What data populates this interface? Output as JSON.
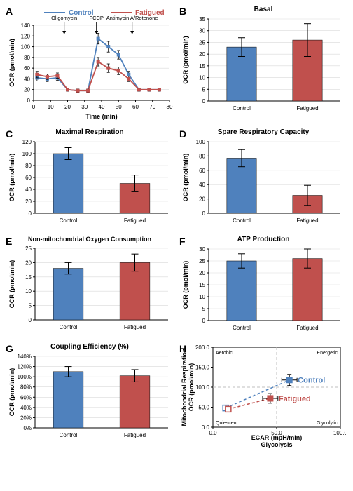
{
  "colors": {
    "control": "#4f81bd",
    "fatigued": "#c0504d",
    "axis": "#000000",
    "grid": "#d9d9d9",
    "bg": "#ffffff",
    "text": "#000000"
  },
  "legend": {
    "control": "Control",
    "fatigued": "Fatigued"
  },
  "panelA": {
    "label": "A",
    "type": "line",
    "xlabel": "Time (min)",
    "ylabel": "OCR (pmol/min)",
    "xlim": [
      0,
      80
    ],
    "xticks": [
      0,
      10,
      20,
      30,
      40,
      50,
      60,
      70,
      80
    ],
    "ylim": [
      0,
      140
    ],
    "yticks": [
      0,
      20,
      40,
      60,
      80,
      100,
      120,
      140
    ],
    "annotations": [
      {
        "text": "Oligomycin",
        "x": 18
      },
      {
        "text": "FCCP",
        "x": 37
      },
      {
        "text": "Antimycin A/Rotenone",
        "x": 58
      }
    ],
    "series": {
      "control": {
        "x": [
          2,
          8,
          14,
          20,
          26,
          32,
          38,
          44,
          50,
          56,
          62,
          68,
          74
        ],
        "y": [
          42,
          40,
          42,
          20,
          18,
          18,
          115,
          100,
          85,
          48,
          20,
          20,
          20
        ],
        "err": [
          6,
          5,
          5,
          3,
          3,
          3,
          10,
          10,
          8,
          6,
          3,
          3,
          3
        ]
      },
      "fatigued": {
        "x": [
          2,
          8,
          14,
          20,
          26,
          32,
          38,
          44,
          50,
          56,
          62,
          68,
          74
        ],
        "y": [
          48,
          44,
          46,
          20,
          18,
          18,
          72,
          60,
          55,
          40,
          20,
          20,
          20
        ],
        "err": [
          6,
          5,
          5,
          3,
          3,
          3,
          8,
          8,
          7,
          5,
          3,
          3,
          3
        ]
      }
    }
  },
  "panelB": {
    "label": "B",
    "title": "Basal",
    "type": "bar",
    "ylabel": "OCR (pmol/min)",
    "ylim": [
      0,
      35
    ],
    "yticks": [
      0,
      5,
      10,
      15,
      20,
      25,
      30,
      35
    ],
    "categories": [
      "Control",
      "Fatigued"
    ],
    "values": [
      23,
      26
    ],
    "errors": [
      4,
      7
    ],
    "bar_colors": [
      "#4f81bd",
      "#c0504d"
    ],
    "bar_width": 0.45
  },
  "panelC": {
    "label": "C",
    "title": "Maximal Respiration",
    "type": "bar",
    "ylabel": "OCR (pmol/min)",
    "ylim": [
      0,
      120
    ],
    "yticks": [
      0,
      20,
      40,
      60,
      80,
      100,
      120
    ],
    "categories": [
      "Control",
      "Fatigued"
    ],
    "values": [
      100,
      50
    ],
    "errors": [
      10,
      14
    ],
    "bar_colors": [
      "#4f81bd",
      "#c0504d"
    ],
    "bar_width": 0.45
  },
  "panelD": {
    "label": "D",
    "title": "Spare Respiratory Capacity",
    "type": "bar",
    "ylabel": "OCR (pmol/min)",
    "ylim": [
      0,
      100
    ],
    "yticks": [
      0,
      20,
      40,
      60,
      80,
      100
    ],
    "categories": [
      "Control",
      "Fatigued"
    ],
    "values": [
      77,
      25
    ],
    "errors": [
      12,
      14
    ],
    "bar_colors": [
      "#4f81bd",
      "#c0504d"
    ],
    "bar_width": 0.45
  },
  "panelE": {
    "label": "E",
    "title": "Non-mitochondrial Oxygen Consumption",
    "type": "bar",
    "ylabel": "OCR (pmol/min)",
    "ylim": [
      0,
      25
    ],
    "yticks": [
      0,
      5,
      10,
      15,
      20,
      25
    ],
    "categories": [
      "Control",
      "Fatigued"
    ],
    "values": [
      18,
      20
    ],
    "errors": [
      2,
      3
    ],
    "bar_colors": [
      "#4f81bd",
      "#c0504d"
    ],
    "bar_width": 0.45
  },
  "panelF": {
    "label": "F",
    "title": "ATP Production",
    "type": "bar",
    "ylabel": "OCR (pmol/min)",
    "ylim": [
      0,
      30
    ],
    "yticks": [
      0,
      5,
      10,
      15,
      20,
      25,
      30
    ],
    "categories": [
      "Control",
      "Fatigued"
    ],
    "values": [
      25,
      26
    ],
    "errors": [
      3,
      4
    ],
    "bar_colors": [
      "#4f81bd",
      "#c0504d"
    ],
    "bar_width": 0.45
  },
  "panelG": {
    "label": "G",
    "title": "Coupling Efficiency (%)",
    "type": "bar",
    "ylabel": "OCR (pmol/min)",
    "ylim": [
      0,
      140
    ],
    "yticks_labels": [
      "0%",
      "20%",
      "40%",
      "60%",
      "80%",
      "100%",
      "120%",
      "140%"
    ],
    "yticks": [
      0,
      20,
      40,
      60,
      80,
      100,
      120,
      140
    ],
    "categories": [
      "Control",
      "Fatigued"
    ],
    "values": [
      110,
      102
    ],
    "errors": [
      10,
      12
    ],
    "bar_colors": [
      "#4f81bd",
      "#c0504d"
    ],
    "bar_width": 0.45
  },
  "panelH": {
    "label": "H",
    "type": "scatter-line",
    "xlabel_line1": "ECAR (mpH/min)",
    "xlabel_line2": "Glycolysis",
    "ylabel_line1": "Mitochondrial Respiration",
    "ylabel_line2": "OCR (pmol/min)",
    "xlim": [
      0,
      100
    ],
    "xticks": [
      0,
      50,
      100
    ],
    "xticklabels": [
      "0.0",
      "50.0",
      "100.0"
    ],
    "ylim": [
      0,
      200
    ],
    "yticks": [
      0,
      50,
      100,
      150,
      200
    ],
    "yticklabels": [
      "0.0",
      "50.0",
      "100.0",
      "150.0",
      "200.0"
    ],
    "mid_x": 50,
    "mid_y": 100,
    "quadrants": {
      "tl": "Aerobic",
      "tr": "Energetic",
      "bl": "Quiescent",
      "br": "Glycolytic"
    },
    "series": {
      "control": {
        "open": {
          "x": 10,
          "y": 48
        },
        "filled": {
          "x": 60,
          "y": 118,
          "errx": 6,
          "erry": 14
        }
      },
      "fatigued": {
        "open": {
          "x": 12,
          "y": 45
        },
        "filled": {
          "x": 45,
          "y": 72,
          "errx": 6,
          "erry": 12
        }
      }
    },
    "series_labels": {
      "control": "Control",
      "fatigued": "Fatigued"
    }
  }
}
